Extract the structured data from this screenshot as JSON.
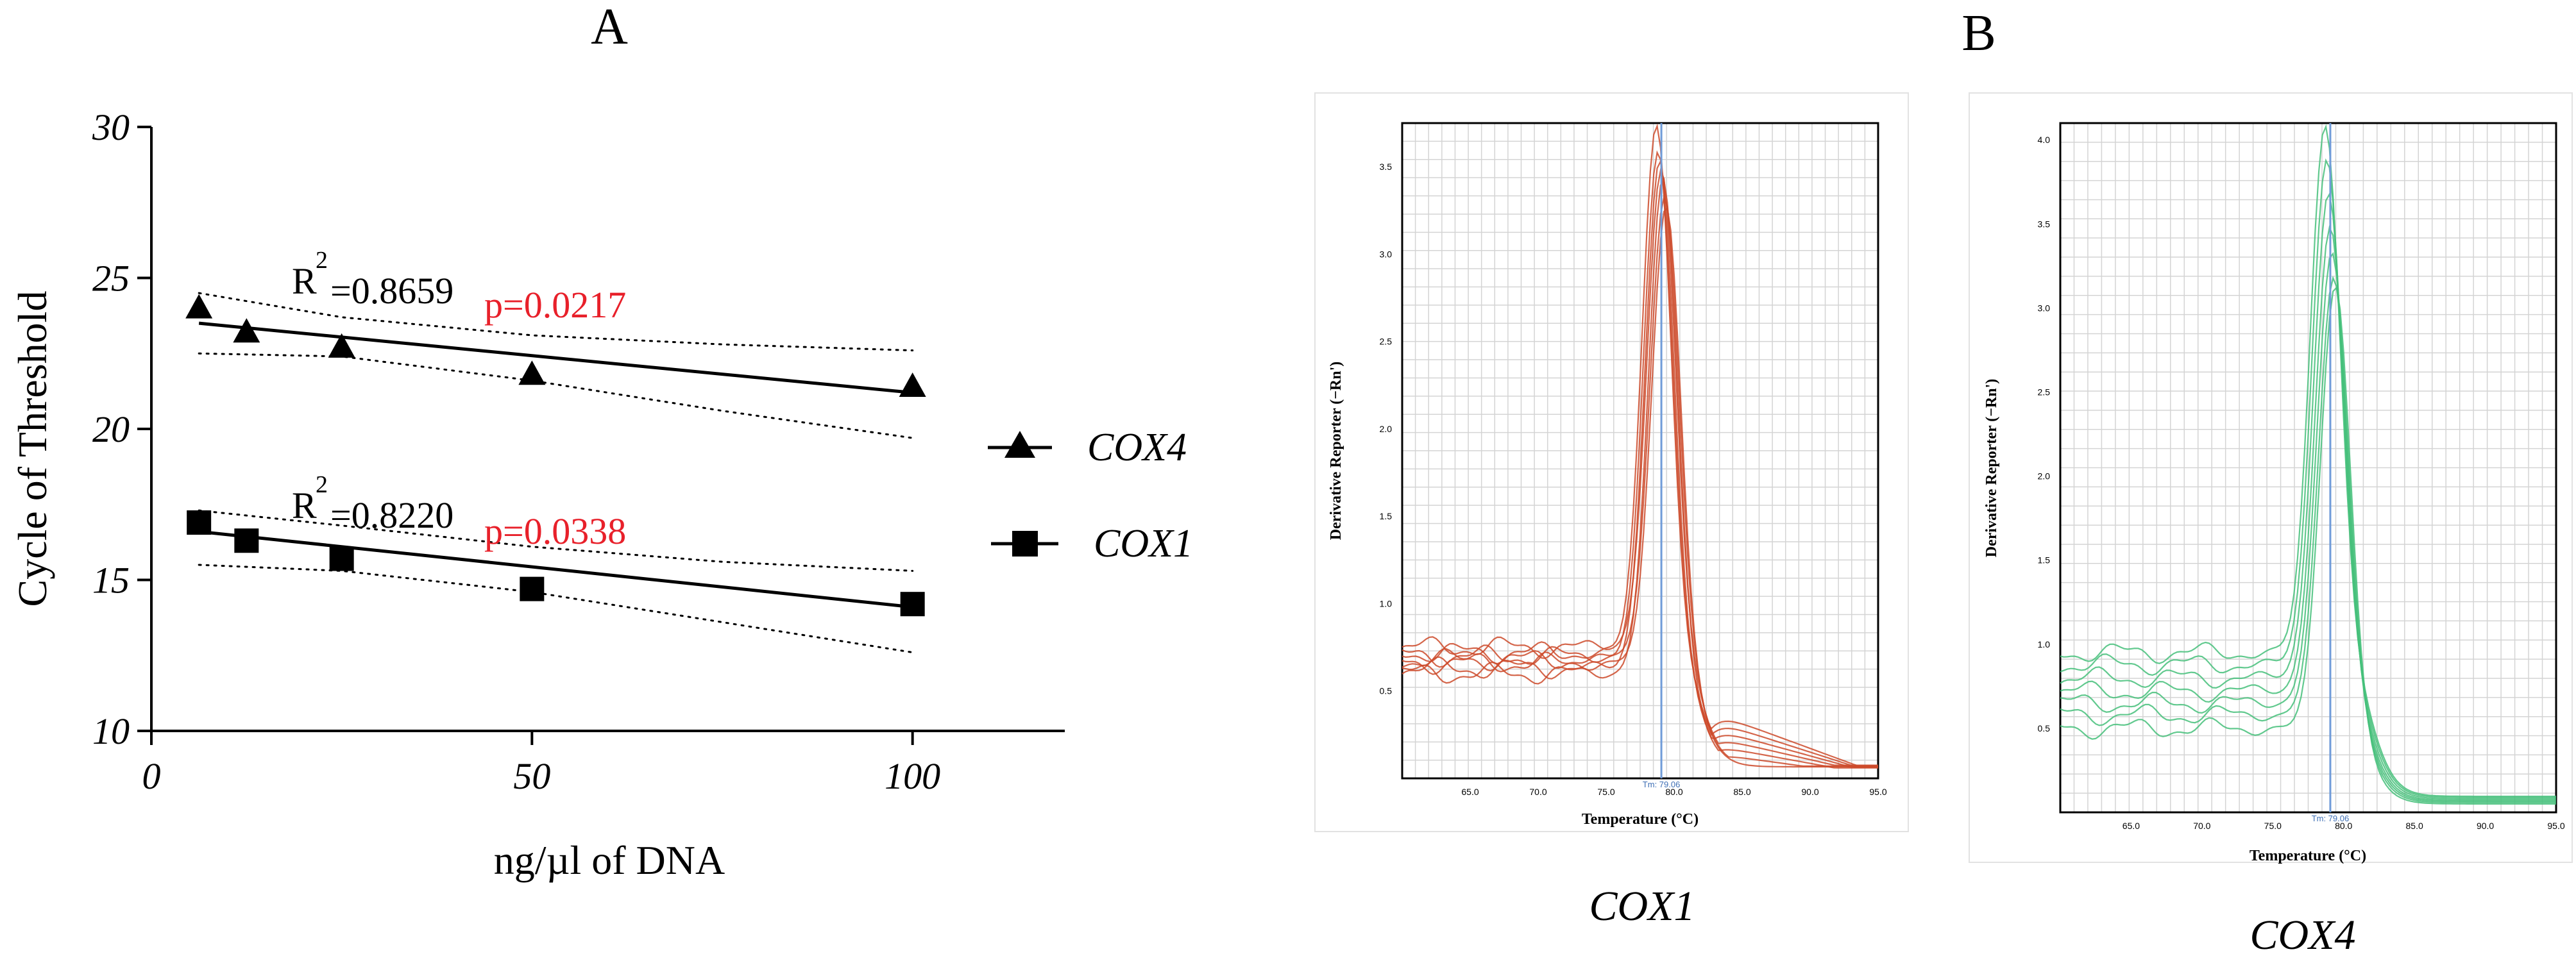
{
  "panels": {
    "a_label": "A",
    "b_label": "B"
  },
  "chart_data": [
    {
      "type": "scatter",
      "title": "A",
      "xlabel": "ng/µl of DNA",
      "ylabel": "Cycle of Threshold",
      "xlim": [
        0,
        120
      ],
      "ylim": [
        10,
        30
      ],
      "xticks": [
        "0",
        "50",
        "100"
      ],
      "xtick_values": [
        0,
        50,
        100
      ],
      "yticks": [
        "10",
        "15",
        "20",
        "25",
        "30"
      ],
      "ytick_values": [
        10,
        15,
        20,
        25,
        30
      ],
      "series": [
        {
          "name": "COX4",
          "marker": "triangle",
          "x": [
            6.25,
            12.5,
            25,
            50,
            100
          ],
          "y": [
            24.0,
            23.2,
            22.7,
            21.8,
            21.4
          ],
          "fit": {
            "x": [
              6.25,
              100
            ],
            "y": [
              23.5,
              21.2
            ]
          },
          "ci_upper": {
            "x": [
              6.25,
              25,
              50,
              75,
              100
            ],
            "y": [
              24.5,
              23.7,
              23.1,
              22.8,
              22.6
            ]
          },
          "ci_lower": {
            "x": [
              6.25,
              25,
              50,
              75,
              100
            ],
            "y": [
              22.5,
              22.4,
              21.6,
              20.6,
              19.7
            ]
          },
          "r2_prefix": "R",
          "r2_sup": "2",
          "r2_value": "=0.8659",
          "p_text": "p=0.0217"
        },
        {
          "name": "COX1",
          "marker": "square",
          "x": [
            6.25,
            12.5,
            25,
            50,
            100
          ],
          "y": [
            16.9,
            16.3,
            15.7,
            14.7,
            14.2
          ],
          "fit": {
            "x": [
              6.25,
              100
            ],
            "y": [
              16.6,
              14.1
            ]
          },
          "ci_upper": {
            "x": [
              6.25,
              25,
              50,
              75,
              100
            ],
            "y": [
              17.3,
              16.8,
              16.1,
              15.6,
              15.3
            ]
          },
          "ci_lower": {
            "x": [
              6.25,
              25,
              50,
              75,
              100
            ],
            "y": [
              15.5,
              15.3,
              14.6,
              13.6,
              12.6
            ]
          },
          "r2_prefix": "R",
          "r2_sup": "2",
          "r2_value": "=0.8220",
          "p_text": "p=0.0338"
        }
      ],
      "legend": [
        {
          "label": "COX4",
          "marker": "triangle"
        },
        {
          "label": "COX1",
          "marker": "square"
        }
      ],
      "legend_position": "right",
      "colors": {
        "axis": "#000000",
        "p_value": "#e8202a"
      }
    },
    {
      "type": "line",
      "title": "COX1",
      "xlabel": "Temperature (°C)",
      "ylabel": "Derivative Reporter (−Rn')",
      "xlim": [
        60,
        95
      ],
      "ylim": [
        0,
        3.75
      ],
      "xticks": [
        "65.0",
        "70.0",
        "75.0",
        "80.0",
        "85.0",
        "90.0",
        "95.0"
      ],
      "xtick_values": [
        65,
        70,
        75,
        80,
        85,
        90,
        95
      ],
      "yticks": [
        "0.5",
        "1.0",
        "1.5",
        "2.0",
        "2.5",
        "3.0",
        "3.5"
      ],
      "ytick_values": [
        0.5,
        1.0,
        1.5,
        2.0,
        2.5,
        3.0,
        3.5
      ],
      "tm_label": "Tm: 79.06",
      "tm_value": 79.06,
      "curve_color": "#cc4a2a",
      "baselines": [
        0.72,
        0.68,
        0.63,
        0.75,
        0.6,
        0.7,
        0.66
      ],
      "peaks": [
        3.75,
        3.6,
        3.55,
        3.5,
        3.45,
        3.35,
        3.3
      ],
      "tails": [
        0.4,
        0.35,
        0.3,
        0.25,
        0.2,
        0.15,
        0.1
      ]
    },
    {
      "type": "line",
      "title": "COX4",
      "xlabel": "Temperature (°C)",
      "ylabel": "Derivative Reporter (−Rn')",
      "xlim": [
        60,
        95
      ],
      "ylim": [
        0,
        4.1
      ],
      "xticks": [
        "65.0",
        "70.0",
        "75.0",
        "80.0",
        "85.0",
        "90.0",
        "95.0"
      ],
      "xtick_values": [
        65,
        70,
        75,
        80,
        85,
        90,
        95
      ],
      "yticks": [
        "0.5",
        "1.0",
        "1.5",
        "2.0",
        "2.5",
        "3.0",
        "3.5",
        "4.0"
      ],
      "ytick_values": [
        0.5,
        1.0,
        1.5,
        2.0,
        2.5,
        3.0,
        3.5,
        4.0
      ],
      "tm_label": "Tm: 79.06",
      "tm_value": 79.06,
      "curve_color": "#45c07a",
      "baselines": [
        0.95,
        0.88,
        0.8,
        0.72,
        0.65,
        0.58,
        0.5
      ],
      "peaks": [
        4.1,
        3.9,
        3.7,
        3.5,
        3.35,
        3.2,
        3.15
      ],
      "tails": [
        0.05,
        0.05,
        0.05,
        0.05,
        0.05,
        0.05,
        0.05
      ]
    }
  ]
}
